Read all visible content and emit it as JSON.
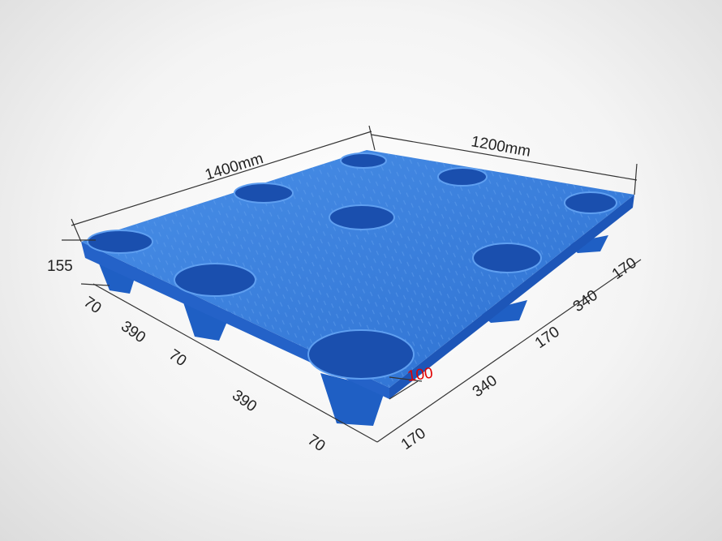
{
  "product": {
    "name": "plastic pallet",
    "color": "#2f78d8"
  },
  "dimensions": {
    "length": "1400mm",
    "width": "1200mm",
    "height": "155",
    "deck_thickness": "100",
    "left_side": [
      "70",
      "390",
      "70",
      "390",
      "70"
    ],
    "right_side": [
      "170",
      "340",
      "170",
      "340",
      "170"
    ]
  },
  "colors": {
    "pallet": "#2f78d8",
    "highlight_label": "#e10000",
    "lines": "#333333"
  }
}
